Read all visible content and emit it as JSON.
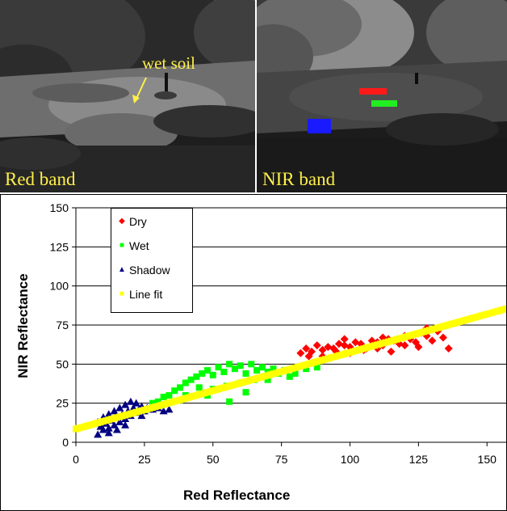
{
  "photos": {
    "red_band": {
      "caption": "Red band",
      "annotation": "wet soil"
    },
    "nir_band": {
      "caption": "NIR band",
      "markers": [
        {
          "name": "dry",
          "color": "#ff1a1a"
        },
        {
          "name": "wet",
          "color": "#22ee22"
        },
        {
          "name": "shadow",
          "color": "#1a1aff"
        }
      ]
    }
  },
  "chart_data": {
    "type": "scatter",
    "xlabel": "Red Reflectance",
    "ylabel": "NIR Reflectance",
    "xlim": [
      0,
      150
    ],
    "ylim": [
      0,
      150
    ],
    "x_ticks": [
      "0",
      "25",
      "50",
      "75",
      "100",
      "125",
      "150"
    ],
    "y_ticks": [
      "0",
      "25",
      "50",
      "75",
      "100",
      "125",
      "150"
    ],
    "grid": "horizontal",
    "legend_position": "top-left",
    "series": [
      {
        "name": "Dry",
        "color": "#ff0000",
        "marker": "diamond",
        "points": [
          [
            82,
            57
          ],
          [
            84,
            60
          ],
          [
            86,
            58
          ],
          [
            88,
            62
          ],
          [
            90,
            59
          ],
          [
            92,
            61
          ],
          [
            94,
            60
          ],
          [
            96,
            63
          ],
          [
            98,
            62
          ],
          [
            100,
            61
          ],
          [
            102,
            64
          ],
          [
            104,
            63
          ],
          [
            106,
            60
          ],
          [
            108,
            65
          ],
          [
            110,
            64
          ],
          [
            112,
            62
          ],
          [
            114,
            66
          ],
          [
            116,
            65
          ],
          [
            118,
            63
          ],
          [
            120,
            68
          ],
          [
            122,
            66
          ],
          [
            124,
            64
          ],
          [
            126,
            70
          ],
          [
            128,
            68
          ],
          [
            130,
            65
          ],
          [
            132,
            71
          ],
          [
            134,
            67
          ],
          [
            136,
            60
          ],
          [
            90,
            55
          ],
          [
            95,
            58
          ],
          [
            100,
            57
          ],
          [
            105,
            59
          ],
          [
            110,
            60
          ],
          [
            115,
            58
          ],
          [
            120,
            62
          ],
          [
            125,
            61
          ],
          [
            85,
            55
          ],
          [
            98,
            66
          ],
          [
            112,
            67
          ],
          [
            128,
            73
          ]
        ]
      },
      {
        "name": "Wet",
        "color": "#00ff00",
        "marker": "square",
        "points": [
          [
            28,
            25
          ],
          [
            30,
            26
          ],
          [
            32,
            29
          ],
          [
            34,
            30
          ],
          [
            36,
            33
          ],
          [
            38,
            35
          ],
          [
            40,
            38
          ],
          [
            42,
            40
          ],
          [
            44,
            42
          ],
          [
            46,
            44
          ],
          [
            48,
            46
          ],
          [
            50,
            43
          ],
          [
            52,
            48
          ],
          [
            54,
            45
          ],
          [
            56,
            50
          ],
          [
            58,
            47
          ],
          [
            60,
            49
          ],
          [
            62,
            44
          ],
          [
            64,
            50
          ],
          [
            66,
            46
          ],
          [
            68,
            48
          ],
          [
            70,
            45
          ],
          [
            72,
            47
          ],
          [
            74,
            44
          ],
          [
            76,
            46
          ],
          [
            78,
            42
          ],
          [
            80,
            44
          ],
          [
            84,
            47
          ],
          [
            88,
            48
          ],
          [
            45,
            35
          ],
          [
            50,
            34
          ],
          [
            55,
            36
          ],
          [
            60,
            38
          ],
          [
            65,
            40
          ],
          [
            70,
            40
          ],
          [
            40,
            30
          ],
          [
            48,
            30
          ],
          [
            56,
            26
          ],
          [
            62,
            32
          ],
          [
            38,
            27
          ]
        ]
      },
      {
        "name": "Shadow",
        "color": "#000080",
        "marker": "triangle",
        "points": [
          [
            8,
            5
          ],
          [
            8,
            13
          ],
          [
            9,
            10
          ],
          [
            10,
            8
          ],
          [
            10,
            16
          ],
          [
            11,
            12
          ],
          [
            12,
            9
          ],
          [
            12,
            18
          ],
          [
            13,
            14
          ],
          [
            14,
            11
          ],
          [
            14,
            20
          ],
          [
            15,
            16
          ],
          [
            16,
            13
          ],
          [
            16,
            22
          ],
          [
            17,
            18
          ],
          [
            18,
            15
          ],
          [
            18,
            24
          ],
          [
            19,
            20
          ],
          [
            20,
            17
          ],
          [
            20,
            26
          ],
          [
            21,
            22
          ],
          [
            22,
            19
          ],
          [
            22,
            25
          ],
          [
            23,
            21
          ],
          [
            24,
            23
          ],
          [
            25,
            20
          ],
          [
            26,
            22
          ],
          [
            28,
            21
          ],
          [
            30,
            22
          ],
          [
            32,
            20
          ],
          [
            34,
            21
          ],
          [
            12,
            6
          ],
          [
            15,
            8
          ],
          [
            18,
            11
          ],
          [
            24,
            17
          ]
        ]
      },
      {
        "name": "Line fit",
        "color": "#ffff00",
        "marker": "square",
        "fit": {
          "intercept": 8.5,
          "slope": 0.49,
          "x_range": [
            0,
            157
          ]
        }
      }
    ]
  }
}
